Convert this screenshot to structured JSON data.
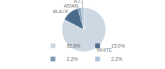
{
  "chart_data": {
    "type": "pie",
    "categories": [
      "WHITE",
      "BLACK",
      "ASIAN",
      "A.I."
    ],
    "values": [
      82.6,
      13.0,
      2.2,
      2.2
    ],
    "value_labels": [
      "82.6%",
      "13.0%",
      "2.2%",
      "2.2%"
    ],
    "colors": [
      "#cdd8e3",
      "#4a6b8a",
      "#7a9ab5",
      "#b0c4d8"
    ],
    "legend": "bottom"
  }
}
